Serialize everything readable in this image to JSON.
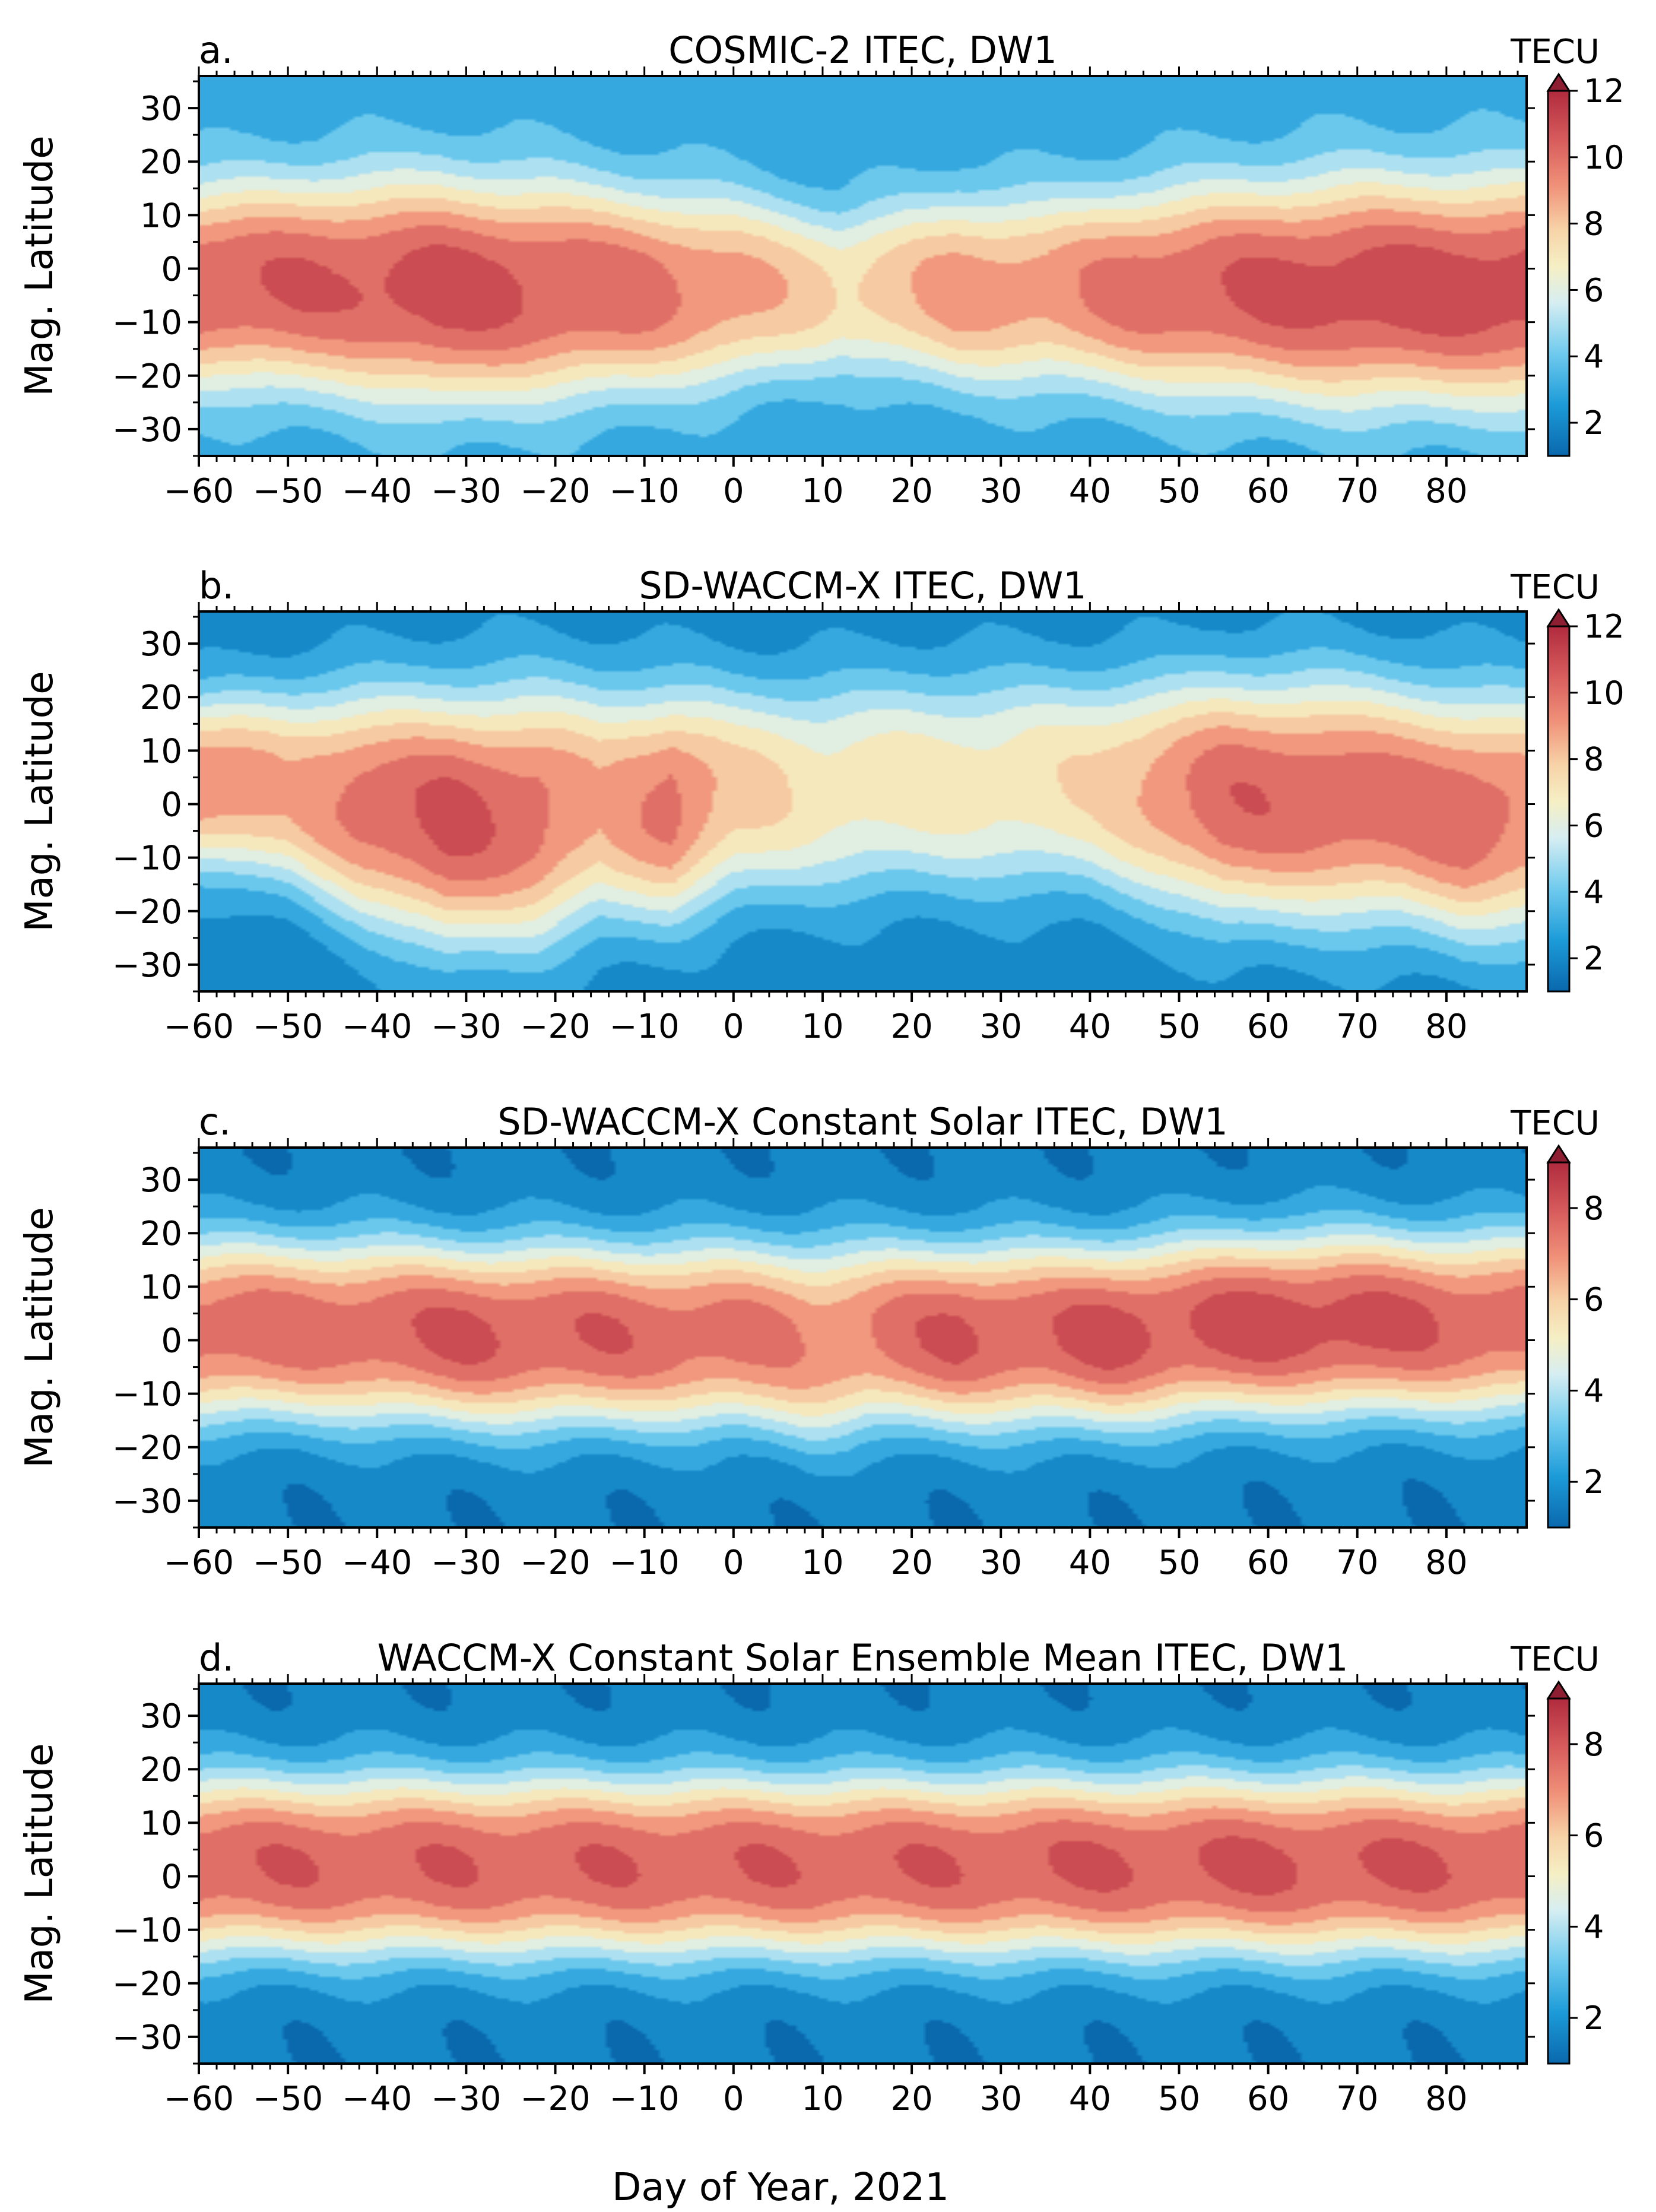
{
  "figure": {
    "xlabel": "Day of Year, 2021",
    "ylabel": "Mag. Latitude"
  },
  "chart_data": [
    {
      "type": "heatmap",
      "panel_label": "a.",
      "title": "COSMIC-2 ITEC, DW1",
      "xlabel": "Day of Year, 2021",
      "ylabel": "Mag. Latitude",
      "xlim": [
        -60,
        89
      ],
      "ylim": [
        -35,
        36
      ],
      "xticks": [
        -60,
        -50,
        -40,
        -30,
        -20,
        -10,
        0,
        10,
        20,
        30,
        40,
        50,
        60,
        70,
        80
      ],
      "yticks": [
        -30,
        -20,
        -10,
        0,
        10,
        20,
        30
      ],
      "colorbar": {
        "label": "TECU",
        "min": 1,
        "max": 12,
        "ticks": [
          2,
          4,
          6,
          8,
          10,
          12
        ],
        "extend": "max"
      },
      "field": {
        "days": [
          -60,
          -45,
          -33,
          -20,
          -10,
          0,
          12,
          25,
          35,
          45,
          55,
          70,
          89
        ],
        "peak": [
          10.5,
          10.5,
          11.0,
          10.5,
          10.0,
          9.0,
          7.5,
          9.0,
          9.0,
          10.0,
          10.5,
          11.0,
          11.0
        ],
        "center": [
          -3,
          -3,
          -4,
          -4,
          -4,
          -4,
          -4,
          -4,
          -4,
          -4,
          -4,
          -4,
          -4
        ],
        "width": [
          14,
          15,
          16,
          15,
          14,
          13,
          11,
          13,
          13,
          14,
          15,
          16,
          16
        ],
        "base": [
          3.0,
          3.0,
          3.0,
          3.0,
          3.0,
          3.0,
          3.0,
          3.0,
          3.0,
          3.0,
          3.0,
          3.0,
          3.0
        ]
      }
    },
    {
      "type": "heatmap",
      "panel_label": "b.",
      "title": "SD-WACCM-X ITEC, DW1",
      "xlabel": "Day of Year, 2021",
      "ylabel": "Mag. Latitude",
      "xlim": [
        -60,
        89
      ],
      "ylim": [
        -35,
        36
      ],
      "xticks": [
        -60,
        -50,
        -40,
        -30,
        -20,
        -10,
        0,
        10,
        20,
        30,
        40,
        50,
        60,
        70,
        80
      ],
      "yticks": [
        -30,
        -20,
        -10,
        0,
        10,
        20,
        30
      ],
      "colorbar": {
        "label": "TECU",
        "min": 1,
        "max": 12,
        "ticks": [
          2,
          4,
          6,
          8,
          10,
          12
        ],
        "extend": "max"
      },
      "field": {
        "days": [
          -60,
          -50,
          -42,
          -32,
          -22,
          -15,
          -7,
          0,
          10,
          20,
          30,
          40,
          50,
          55,
          65,
          75,
          82,
          89
        ],
        "peak": [
          9.5,
          8.5,
          10.0,
          10.8,
          10.0,
          8.5,
          10.0,
          8.0,
          7.0,
          7.0,
          7.0,
          7.5,
          9.5,
          10.3,
          10.3,
          10.0,
          10.3,
          9.5
        ],
        "center": [
          4,
          3,
          0,
          -3,
          -2,
          0,
          0,
          2,
          3,
          4,
          4,
          4,
          2,
          1,
          1,
          0,
          -2,
          -2
        ],
        "width": [
          12,
          14,
          16,
          18,
          18,
          17,
          16,
          15,
          15,
          15,
          15,
          15,
          16,
          17,
          17,
          17,
          17,
          17
        ],
        "base": [
          2.0,
          2.0,
          2.0,
          2.0,
          2.0,
          2.0,
          2.0,
          2.0,
          2.0,
          2.0,
          2.0,
          2.0,
          2.0,
          2.0,
          2.0,
          2.0,
          2.0,
          2.0
        ]
      }
    },
    {
      "type": "heatmap",
      "panel_label": "c.",
      "title": "SD-WACCM-X Constant Solar ITEC, DW1",
      "xlabel": "Day of Year, 2021",
      "ylabel": "Mag. Latitude",
      "xlim": [
        -60,
        89
      ],
      "ylim": [
        -35,
        36
      ],
      "xticks": [
        -60,
        -50,
        -40,
        -30,
        -20,
        -10,
        0,
        10,
        20,
        30,
        40,
        50,
        60,
        70,
        80
      ],
      "yticks": [
        -30,
        -20,
        -10,
        0,
        10,
        20,
        30
      ],
      "colorbar": {
        "label": "TECU",
        "min": 1,
        "max": 9,
        "ticks": [
          2,
          4,
          6,
          8
        ],
        "extend": "max"
      },
      "field": {
        "days": [
          -60,
          -45,
          -30,
          -15,
          0,
          9,
          15,
          25,
          35,
          42,
          50,
          60,
          70,
          80,
          89
        ],
        "peak": [
          7.6,
          7.6,
          8.0,
          7.8,
          7.5,
          7.0,
          7.3,
          8.0,
          7.8,
          8.2,
          8.0,
          8.3,
          8.2,
          7.8,
          7.6
        ],
        "center": [
          2,
          2,
          1,
          1,
          1,
          0,
          1,
          1,
          1,
          1,
          2,
          3,
          3,
          3,
          3
        ],
        "width": [
          13,
          13,
          13,
          13,
          13,
          14,
          13,
          13,
          13,
          13,
          13,
          13,
          13,
          13,
          13
        ],
        "base": [
          1.5,
          1.5,
          1.5,
          1.5,
          1.5,
          1.5,
          1.5,
          1.5,
          1.5,
          1.5,
          1.5,
          1.5,
          1.5,
          1.5,
          1.5
        ]
      }
    },
    {
      "type": "heatmap",
      "panel_label": "d.",
      "title": "WACCM-X Constant Solar Ensemble Mean ITEC, DW1",
      "xlabel": "Day of Year, 2021",
      "ylabel": "Mag. Latitude",
      "xlim": [
        -60,
        89
      ],
      "ylim": [
        -35,
        36
      ],
      "xticks": [
        -60,
        -50,
        -40,
        -30,
        -20,
        -10,
        0,
        10,
        20,
        30,
        40,
        50,
        60,
        70,
        80
      ],
      "yticks": [
        -30,
        -20,
        -10,
        0,
        10,
        20,
        30
      ],
      "colorbar": {
        "label": "TECU",
        "min": 1,
        "max": 9,
        "ticks": [
          2,
          4,
          6,
          8
        ],
        "extend": "max"
      },
      "field": {
        "days": [
          -60,
          -40,
          -20,
          0,
          20,
          40,
          60,
          80,
          89
        ],
        "peak": [
          7.8,
          7.8,
          7.8,
          7.8,
          7.8,
          7.9,
          8.0,
          7.9,
          7.8
        ],
        "center": [
          2,
          2,
          2,
          2,
          2,
          2,
          2,
          2,
          2
        ],
        "width": [
          13,
          13,
          13,
          13,
          13,
          13,
          13,
          13,
          13
        ],
        "base": [
          1.5,
          1.5,
          1.5,
          1.5,
          1.5,
          1.5,
          1.5,
          1.5,
          1.5
        ]
      }
    }
  ]
}
